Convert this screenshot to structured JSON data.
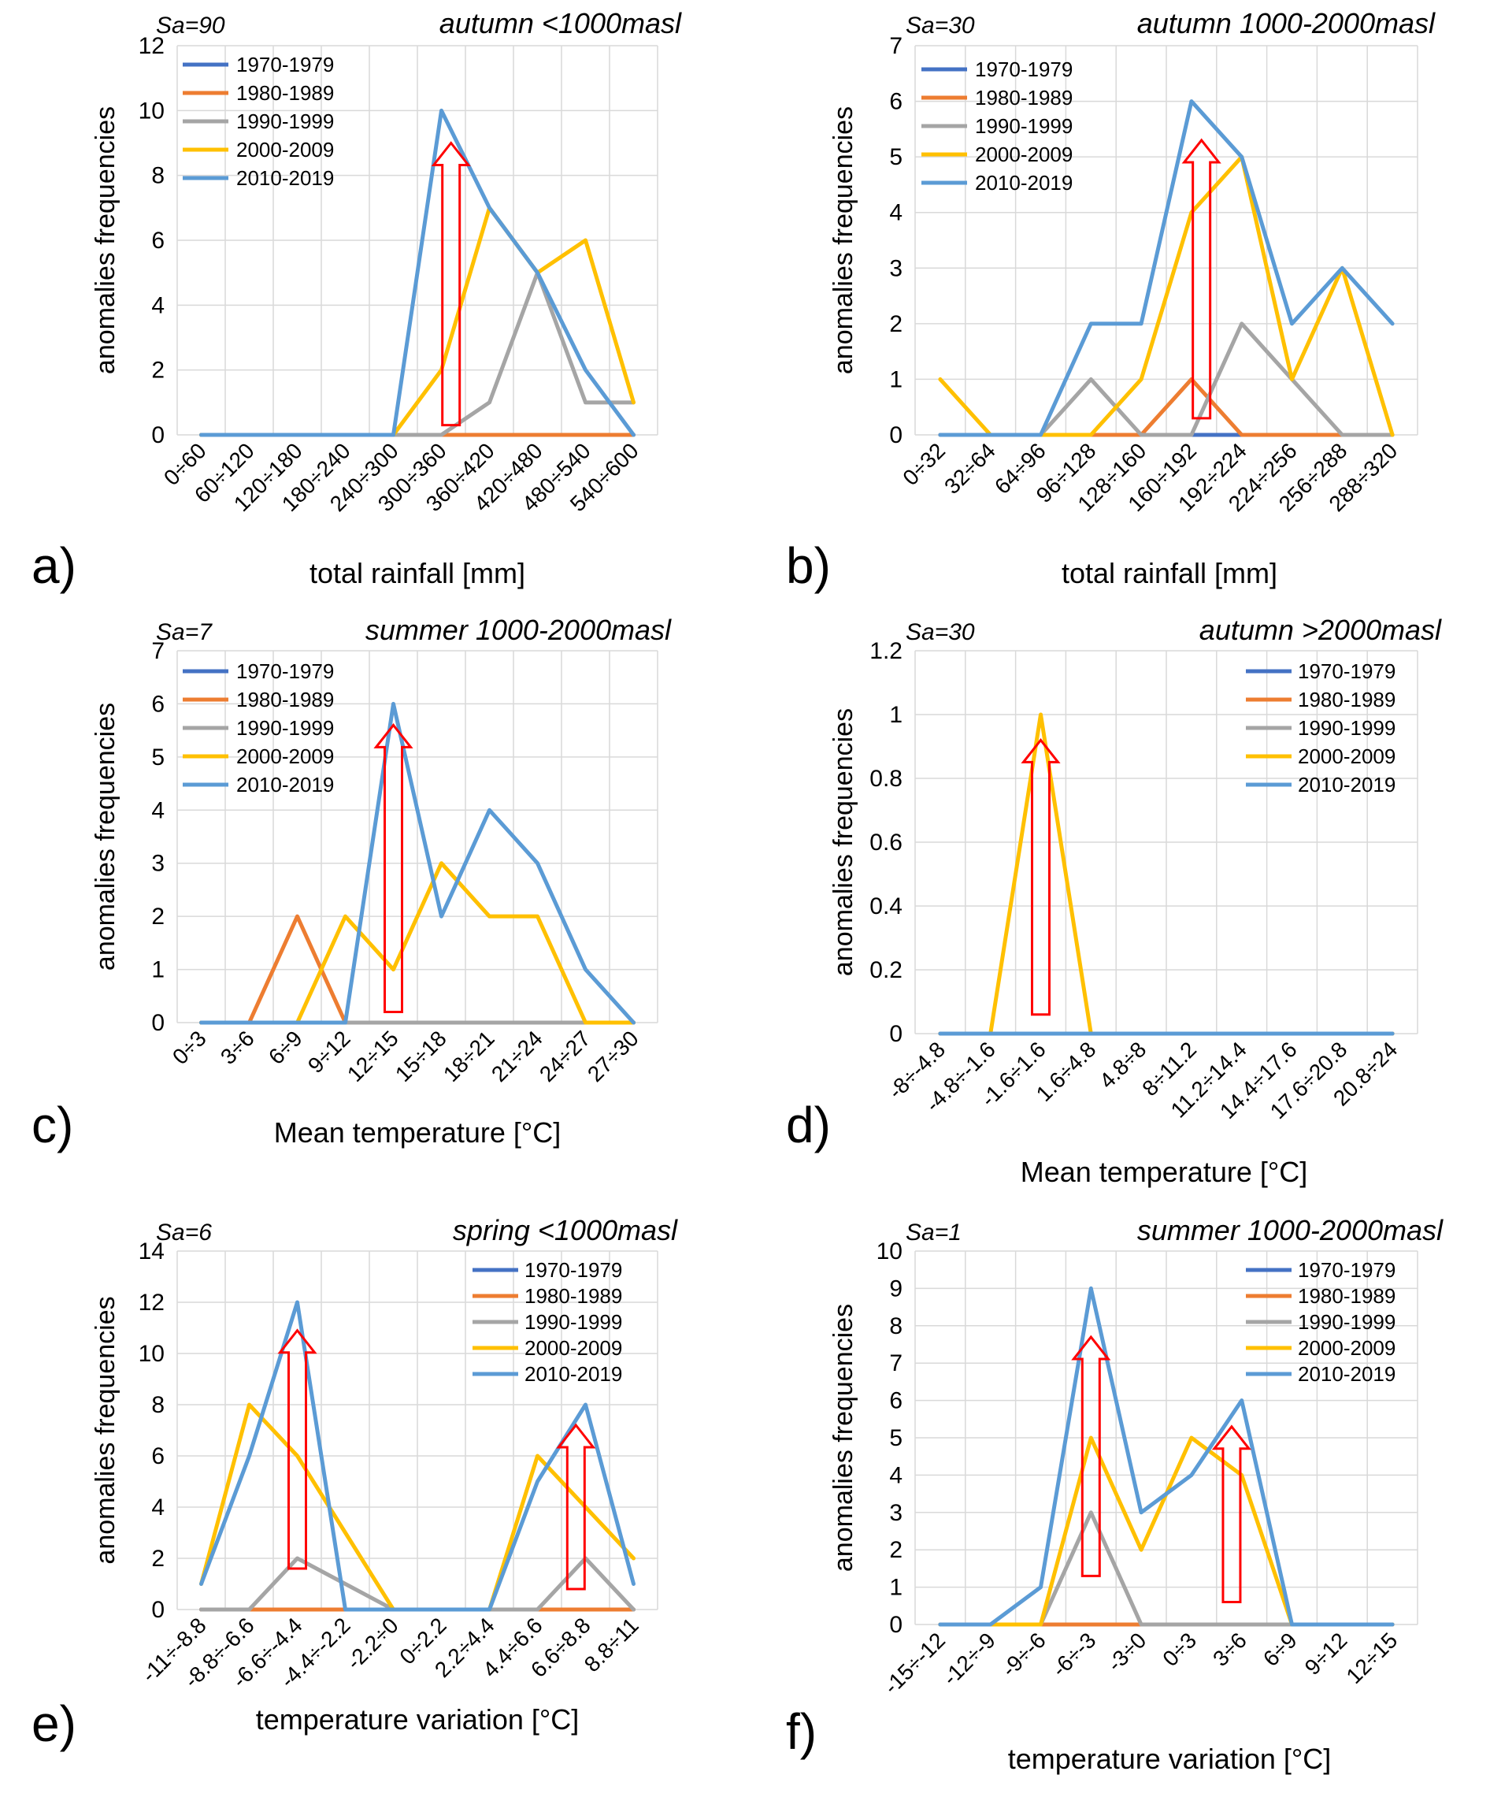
{
  "colors": {
    "1970-1979": "#4472C4",
    "1980-1989": "#ED7D31",
    "1990-1999": "#A5A5A5",
    "2000-2009": "#FFC000",
    "2010-2019": "#5B9BD5",
    "arrow": "#FF0000",
    "grid": "#D9D9D9"
  },
  "chart_data": [
    {
      "panel_label": "a)",
      "type": "line",
      "sa": "Sa=90",
      "title": "autumn <1000masl",
      "xlabel": "total rainfall [mm]",
      "ylabel": "anomalies frequencies",
      "ylim": [
        0,
        12
      ],
      "yticks": [
        "0",
        "2",
        "4",
        "6",
        "8",
        "10",
        "12"
      ],
      "categories": [
        "0÷60",
        "60÷120",
        "120÷180",
        "180÷240",
        "240÷300",
        "300÷360",
        "360÷420",
        "420÷480",
        "480÷540",
        "540÷600"
      ],
      "legend_position": "top-left",
      "series": [
        {
          "name": "1970-1979",
          "values": [
            0,
            0,
            0,
            0,
            0,
            0,
            0,
            0,
            0,
            0
          ]
        },
        {
          "name": "1980-1989",
          "values": [
            0,
            0,
            0,
            0,
            0,
            0,
            0,
            0,
            0,
            0
          ]
        },
        {
          "name": "1990-1999",
          "values": [
            0,
            0,
            0,
            0,
            0,
            0,
            1,
            5,
            1,
            1
          ]
        },
        {
          "name": "2000-2009",
          "values": [
            0,
            0,
            0,
            0,
            0,
            2,
            7,
            5,
            6,
            1
          ]
        },
        {
          "name": "2010-2019",
          "values": [
            0,
            0,
            0,
            0,
            0,
            10,
            7,
            5,
            2,
            0
          ]
        }
      ],
      "arrows": [
        {
          "category_index": 5.2,
          "from": 0.3,
          "to": 9
        }
      ]
    },
    {
      "panel_label": "b)",
      "type": "line",
      "sa": "Sa=30",
      "title": "autumn 1000-2000masl",
      "xlabel": "total rainfall [mm]",
      "ylabel": "anomalies frequencies",
      "ylim": [
        0,
        7
      ],
      "yticks": [
        "0",
        "1",
        "2",
        "3",
        "4",
        "5",
        "6",
        "7"
      ],
      "categories": [
        "0÷32",
        "32÷64",
        "64÷96",
        "96÷128",
        "128÷160",
        "160÷192",
        "192÷224",
        "224÷256",
        "256÷288",
        "288÷320"
      ],
      "legend_position": "top-left",
      "series": [
        {
          "name": "1970-1979",
          "values": [
            0,
            0,
            0,
            0,
            0,
            0,
            0,
            0,
            0,
            0
          ]
        },
        {
          "name": "1980-1989",
          "values": [
            0,
            0,
            0,
            0,
            0,
            1,
            0,
            0,
            0,
            0
          ]
        },
        {
          "name": "1990-1999",
          "values": [
            0,
            0,
            0,
            1,
            0,
            0,
            2,
            1,
            0,
            0
          ]
        },
        {
          "name": "2000-2009",
          "values": [
            1,
            0,
            0,
            0,
            1,
            4,
            5,
            1,
            3,
            0
          ]
        },
        {
          "name": "2010-2019",
          "values": [
            0,
            0,
            0,
            2,
            2,
            6,
            5,
            2,
            3,
            2
          ]
        }
      ],
      "arrows": [
        {
          "category_index": 5.2,
          "from": 0.3,
          "to": 5.3
        }
      ]
    },
    {
      "panel_label": "c)",
      "type": "line",
      "sa": "Sa=7",
      "title": "summer 1000-2000masl",
      "xlabel": "Mean temperature [°C]",
      "ylabel": "anomalies frequencies",
      "ylim": [
        0,
        7
      ],
      "yticks": [
        "0",
        "1",
        "2",
        "3",
        "4",
        "5",
        "6",
        "7"
      ],
      "categories": [
        "0÷3",
        "3÷6",
        "6÷9",
        "9÷12",
        "12÷15",
        "15÷18",
        "18÷21",
        "21÷24",
        "24÷27",
        "27÷30"
      ],
      "legend_position": "top-left",
      "series": [
        {
          "name": "1970-1979",
          "values": [
            0,
            0,
            0,
            0,
            0,
            0,
            0,
            0,
            0,
            0
          ]
        },
        {
          "name": "1980-1989",
          "values": [
            0,
            0,
            2,
            0,
            0,
            0,
            0,
            0,
            0,
            0
          ]
        },
        {
          "name": "1990-1999",
          "values": [
            0,
            0,
            0,
            0,
            0,
            0,
            0,
            0,
            0,
            0
          ]
        },
        {
          "name": "2000-2009",
          "values": [
            0,
            0,
            0,
            2,
            1,
            3,
            2,
            2,
            0,
            0
          ]
        },
        {
          "name": "2010-2019",
          "values": [
            0,
            0,
            0,
            0,
            6,
            2,
            4,
            3,
            1,
            0
          ]
        }
      ],
      "arrows": [
        {
          "category_index": 4,
          "from": 0.2,
          "to": 5.6
        }
      ]
    },
    {
      "panel_label": "d)",
      "type": "line",
      "sa": "Sa=30",
      "title": "autumn >2000masl",
      "xlabel": "Mean temperature [°C]",
      "ylabel": "anomalies frequencies",
      "ylim": [
        0,
        1.2
      ],
      "yticks": [
        "0",
        "0.2",
        "0.4",
        "0.6",
        "0.8",
        "1",
        "1.2"
      ],
      "categories": [
        "-8÷-4.8",
        "-4.8÷-1.6",
        "-1.6÷1.6",
        "1.6÷4.8",
        "4.8÷8",
        "8÷11.2",
        "11.2÷14.4",
        "14.4÷17.6",
        "17.6÷20.8",
        "20.8÷24"
      ],
      "legend_position": "top-right",
      "series": [
        {
          "name": "1970-1979",
          "values": [
            0,
            0,
            0,
            0,
            0,
            0,
            0,
            0,
            0,
            0
          ]
        },
        {
          "name": "1980-1989",
          "values": [
            0,
            0,
            0,
            0,
            0,
            0,
            0,
            0,
            0,
            0
          ]
        },
        {
          "name": "1990-1999",
          "values": [
            0,
            0,
            0,
            0,
            0,
            0,
            0,
            0,
            0,
            0
          ]
        },
        {
          "name": "2000-2009",
          "values": [
            0,
            0,
            1,
            0,
            0,
            0,
            0,
            0,
            0,
            0
          ]
        },
        {
          "name": "2010-2019",
          "values": [
            0,
            0,
            0,
            0,
            0,
            0,
            0,
            0,
            0,
            0
          ]
        }
      ],
      "arrows": [
        {
          "category_index": 2,
          "from": 0.06,
          "to": 0.92
        }
      ]
    },
    {
      "panel_label": "e)",
      "type": "line",
      "sa": "Sa=6",
      "title": "spring <1000masl",
      "xlabel": "temperature variation [°C]",
      "ylabel": "anomalies frequencies",
      "ylim": [
        0,
        14
      ],
      "yticks": [
        "0",
        "2",
        "4",
        "6",
        "8",
        "10",
        "12",
        "14"
      ],
      "categories": [
        "-11÷-8.8",
        "-8.8÷-6.6",
        "-6.6÷-4.4",
        "-4.4÷-2.2",
        "-2.2÷0",
        "0÷2.2",
        "2.2÷4.4",
        "4.4÷6.6",
        "6.6÷8.8",
        "8.8÷11"
      ],
      "legend_position": "top-right",
      "series": [
        {
          "name": "1970-1979",
          "values": [
            0,
            0,
            0,
            0,
            0,
            0,
            0,
            0,
            0,
            0
          ]
        },
        {
          "name": "1980-1989",
          "values": [
            0,
            0,
            0,
            0,
            0,
            0,
            0,
            0,
            0,
            0
          ]
        },
        {
          "name": "1990-1999",
          "values": [
            0,
            0,
            2,
            1,
            0,
            0,
            0,
            0,
            2,
            0
          ]
        },
        {
          "name": "2000-2009",
          "values": [
            1,
            8,
            6,
            3,
            0,
            0,
            0,
            6,
            4,
            2
          ]
        },
        {
          "name": "2010-2019",
          "values": [
            1,
            6,
            12,
            0,
            0,
            0,
            0,
            5,
            8,
            1
          ]
        }
      ],
      "arrows": [
        {
          "category_index": 2,
          "from": 1.6,
          "to": 10.9
        },
        {
          "category_index": 7.8,
          "from": 0.8,
          "to": 7.2
        }
      ]
    },
    {
      "panel_label": "f)",
      "type": "line",
      "sa": "Sa=1",
      "title": "summer 1000-2000masl",
      "xlabel": "temperature variation [°C]",
      "ylabel": "anomalies frequencies",
      "ylim": [
        0,
        10
      ],
      "yticks": [
        "0",
        "1",
        "2",
        "3",
        "4",
        "5",
        "6",
        "7",
        "8",
        "9",
        "10"
      ],
      "categories": [
        "-15÷-12",
        "-12÷-9",
        "-9÷-6",
        "-6÷-3",
        "-3÷0",
        "0÷3",
        "3÷6",
        "6÷9",
        "9÷12",
        "12÷15"
      ],
      "legend_position": "top-right",
      "series": [
        {
          "name": "1970-1979",
          "values": [
            0,
            0,
            0,
            0,
            0,
            0,
            0,
            0,
            0,
            0
          ]
        },
        {
          "name": "1980-1989",
          "values": [
            0,
            0,
            0,
            0,
            0,
            0,
            0,
            0,
            0,
            0
          ]
        },
        {
          "name": "1990-1999",
          "values": [
            0,
            0,
            0,
            3,
            0,
            0,
            0,
            0,
            0,
            0
          ]
        },
        {
          "name": "2000-2009",
          "values": [
            0,
            0,
            0,
            5,
            2,
            5,
            4,
            0,
            0,
            0
          ]
        },
        {
          "name": "2010-2019",
          "values": [
            0,
            0,
            1,
            9,
            3,
            4,
            6,
            0,
            0,
            0
          ]
        }
      ],
      "arrows": [
        {
          "category_index": 3,
          "from": 1.3,
          "to": 7.7
        },
        {
          "category_index": 5.8,
          "from": 0.6,
          "to": 5.3
        }
      ]
    }
  ]
}
